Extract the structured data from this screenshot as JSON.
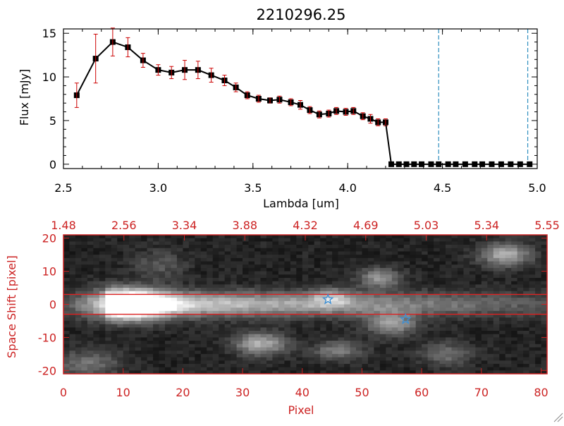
{
  "chart_data": [
    {
      "type": "line",
      "title": "2210296.25",
      "xlabel": "Lambda [um]",
      "ylabel": "Flux [mJy]",
      "xlim": [
        2.5,
        5.0
      ],
      "ylim": [
        -0.5,
        15.5
      ],
      "x_ticks": [
        "2.5",
        "3.0",
        "3.5",
        "4.0",
        "4.5",
        "5.0"
      ],
      "x_tick_values": [
        2.5,
        3.0,
        3.5,
        4.0,
        4.5,
        5.0
      ],
      "y_ticks": [
        "0",
        "5",
        "10",
        "15"
      ],
      "y_tick_values": [
        0,
        5,
        10,
        15
      ],
      "series": [
        {
          "x": [
            2.57,
            2.67,
            2.76,
            2.84,
            2.92,
            3.0,
            3.07,
            3.14,
            3.21,
            3.28,
            3.35,
            3.41,
            3.47,
            3.53,
            3.59,
            3.64,
            3.7,
            3.75,
            3.8,
            3.85,
            3.9,
            3.94,
            3.99,
            4.03,
            4.08,
            4.12,
            4.16,
            4.2,
            4.23,
            4.27,
            4.31,
            4.35,
            4.39,
            4.44,
            4.48,
            4.53,
            4.57,
            4.62,
            4.67,
            4.71,
            4.76,
            4.81,
            4.86,
            4.91,
            4.96
          ],
          "y": [
            7.9,
            12.1,
            14.0,
            13.4,
            11.9,
            10.8,
            10.5,
            10.8,
            10.8,
            10.2,
            9.6,
            8.8,
            7.9,
            7.5,
            7.3,
            7.4,
            7.1,
            6.8,
            6.2,
            5.7,
            5.8,
            6.1,
            6.0,
            6.1,
            5.5,
            5.2,
            4.8,
            4.8,
            0,
            0,
            0,
            0,
            0,
            0,
            0,
            0,
            0,
            0,
            0,
            0,
            0,
            0,
            0,
            0,
            0
          ],
          "err": [
            1.4,
            2.8,
            1.6,
            1.1,
            0.8,
            0.6,
            0.7,
            1.1,
            1.0,
            0.8,
            0.6,
            0.5,
            0.4,
            0.4,
            0.3,
            0.4,
            0.4,
            0.5,
            0.4,
            0.4,
            0.4,
            0.4,
            0.4,
            0.4,
            0.4,
            0.5,
            0.4,
            0.4,
            0,
            0,
            0,
            0,
            0,
            0,
            0,
            0,
            0,
            0,
            0,
            0,
            0,
            0,
            0,
            0,
            0
          ]
        }
      ],
      "vlines": [
        4.48,
        4.95
      ],
      "colors": {
        "line": "#000000",
        "marker": "#000000",
        "error": "#cc0000",
        "vline": "#2e8fbf"
      }
    },
    {
      "type": "heatmap",
      "xlabel": "Pixel",
      "ylabel": "Space Shift [pixel]",
      "xlim": [
        0,
        81
      ],
      "ylim": [
        -21,
        21
      ],
      "x_ticks": [
        "0",
        "10",
        "20",
        "30",
        "40",
        "50",
        "60",
        "70",
        "80"
      ],
      "x_tick_values": [
        0,
        10,
        20,
        30,
        40,
        50,
        60,
        70,
        80
      ],
      "y_ticks": [
        "-20",
        "-10",
        "0",
        "10",
        "20"
      ],
      "y_tick_values": [
        -20,
        -10,
        0,
        10,
        20
      ],
      "top_ticks": [
        "1.48",
        "2.56",
        "3.34",
        "3.88",
        "4.32",
        "4.69",
        "5.03",
        "5.34",
        "5.55"
      ],
      "hlines": [
        3,
        -3
      ],
      "stars": [
        {
          "x": 44.3,
          "y": 1.5
        },
        {
          "x": 57.3,
          "y": -4.5
        }
      ],
      "colors": {
        "axis": "#cc2222",
        "hline": "#dd2222",
        "star": "#3a8fd6"
      }
    }
  ]
}
